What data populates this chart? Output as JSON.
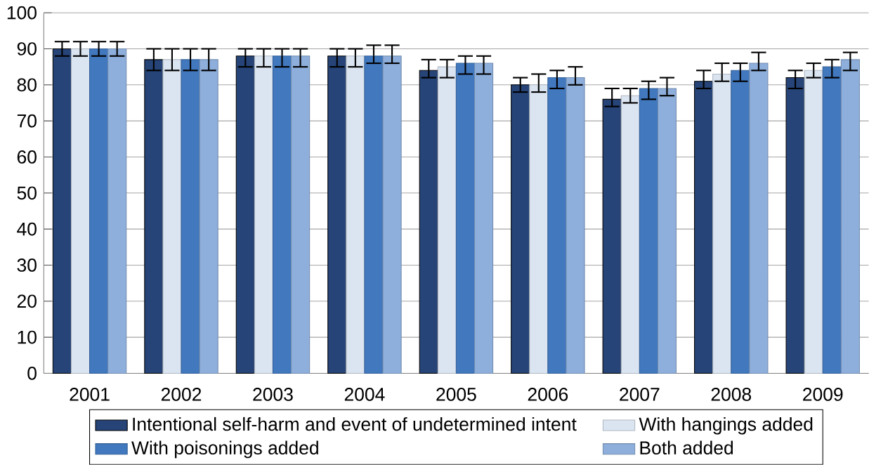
{
  "chart_data": {
    "type": "bar",
    "categories": [
      "2001",
      "2002",
      "2003",
      "2004",
      "2005",
      "2006",
      "2007",
      "2008",
      "2009"
    ],
    "series": [
      {
        "name": "Intentional self-harm and event of undetermined intent",
        "color": "#264478",
        "values": [
          90,
          87,
          88,
          88,
          84,
          80,
          76,
          81,
          82
        ],
        "errors": [
          [
            88,
            92
          ],
          [
            84,
            90
          ],
          [
            85,
            90
          ],
          [
            85,
            90
          ],
          [
            82,
            87
          ],
          [
            78,
            82
          ],
          [
            74,
            79
          ],
          [
            79,
            84
          ],
          [
            79,
            84
          ]
        ]
      },
      {
        "name": "With hangings added",
        "color": "#dbe5f1",
        "values": [
          90,
          87,
          88,
          88,
          85,
          80,
          77,
          83,
          84
        ],
        "errors": [
          [
            88,
            92
          ],
          [
            84,
            90
          ],
          [
            85,
            90
          ],
          [
            85,
            90
          ],
          [
            82,
            87
          ],
          [
            78,
            83
          ],
          [
            75,
            79
          ],
          [
            81,
            86
          ],
          [
            82,
            86
          ]
        ]
      },
      {
        "name": "With poisonings added",
        "color": "#4178be",
        "values": [
          90,
          87,
          88,
          88,
          86,
          82,
          79,
          84,
          85
        ],
        "errors": [
          [
            88,
            92
          ],
          [
            84,
            90
          ],
          [
            85,
            90
          ],
          [
            86,
            91
          ],
          [
            83,
            88
          ],
          [
            79,
            84
          ],
          [
            76,
            81
          ],
          [
            81,
            86
          ],
          [
            82,
            87
          ]
        ]
      },
      {
        "name": "Both added",
        "color": "#8eafdb",
        "values": [
          90,
          87,
          88,
          88,
          86,
          82,
          79,
          86,
          87
        ],
        "errors": [
          [
            88,
            92
          ],
          [
            84,
            90
          ],
          [
            85,
            90
          ],
          [
            86,
            91
          ],
          [
            83,
            88
          ],
          [
            80,
            85
          ],
          [
            77,
            82
          ],
          [
            84,
            89
          ],
          [
            84,
            89
          ]
        ]
      }
    ],
    "ylim": [
      0,
      100
    ],
    "yticks": [
      0,
      10,
      20,
      30,
      40,
      50,
      60,
      70,
      80,
      90,
      100
    ],
    "grid": "y",
    "legend": "bottom"
  }
}
